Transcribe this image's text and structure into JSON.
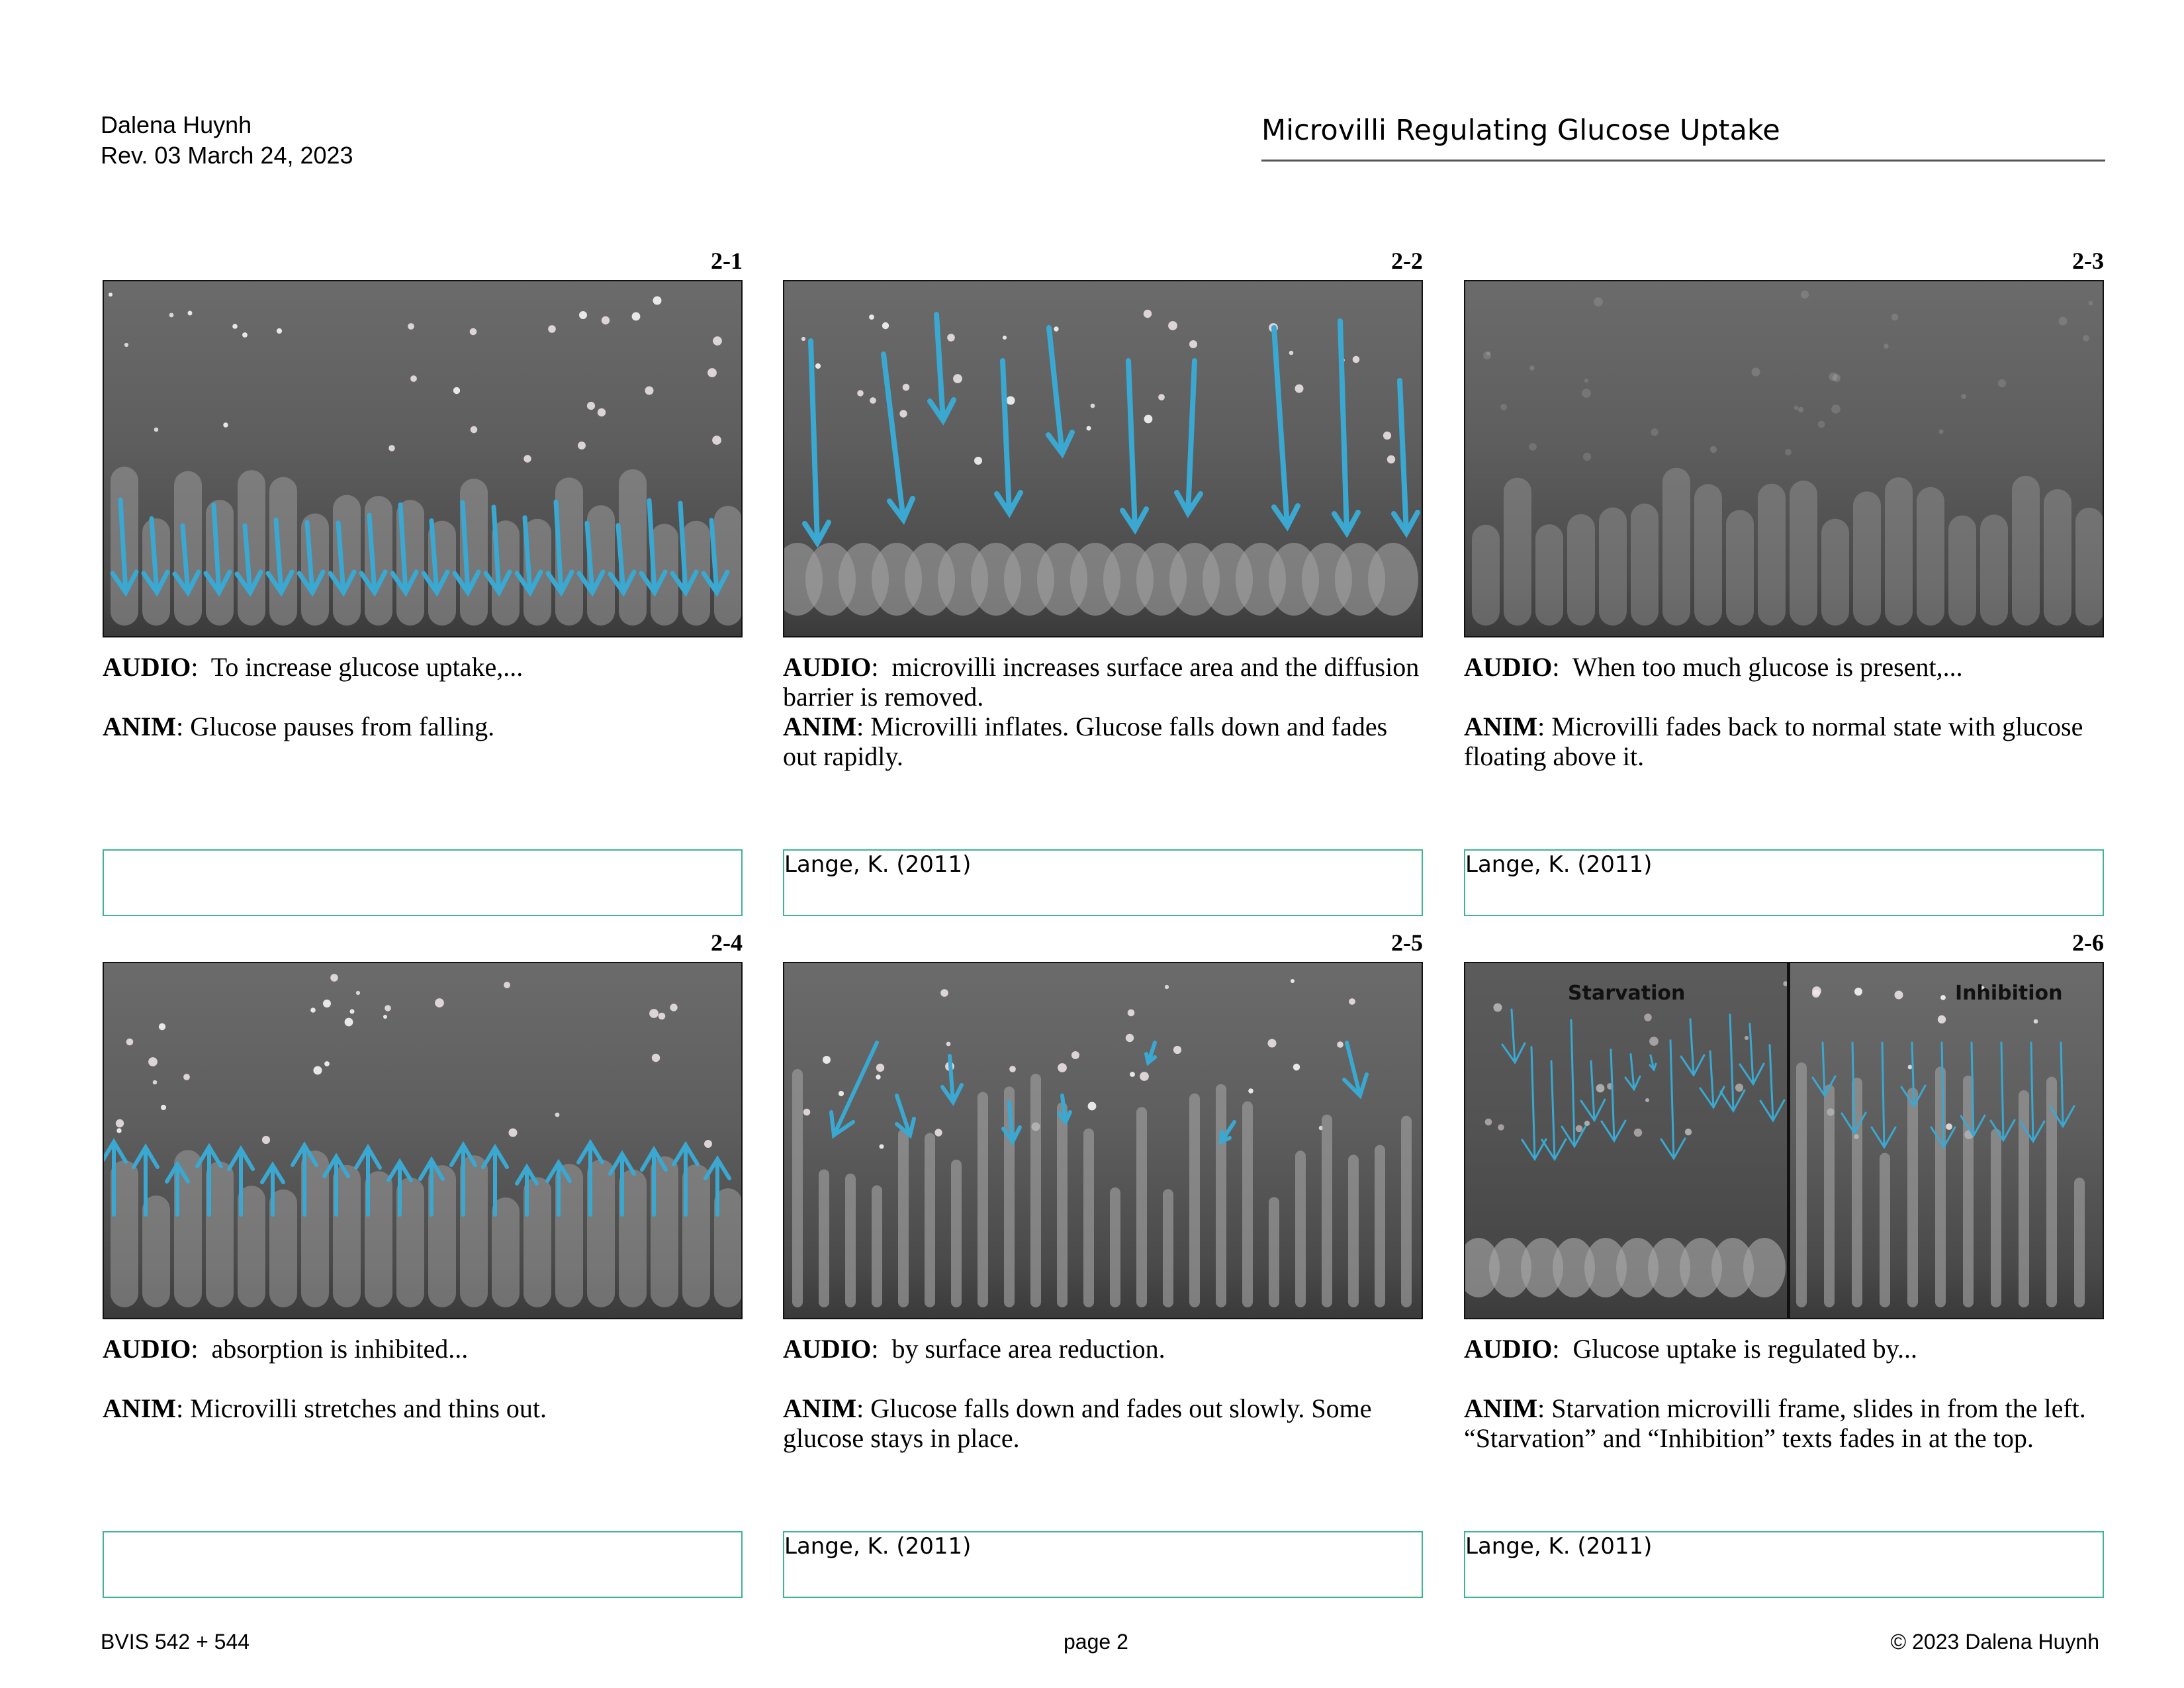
{
  "header": {
    "author": "Dalena Huynh",
    "revision": "Rev. 03 March 24, 2023",
    "title": "Microvilli Regulating Glucose Uptake"
  },
  "frames": [
    {
      "id": "2-1",
      "audio_label": "AUDIO",
      "audio": "To increase glucose uptake,...",
      "anim_label": "ANIM",
      "anim": "Glucose pauses from falling.",
      "reference": "",
      "style": "normal",
      "arrows": "down"
    },
    {
      "id": "2-2",
      "audio_label": "AUDIO",
      "audio": "microvilli increases surface area and the diffusion barrier is removed.",
      "anim_label": "ANIM",
      "anim": "Microvilli inflates. Glucose falls down and fades out rapidly.",
      "reference": "Lange, K. (2011)",
      "style": "inflated",
      "arrows": "down-long"
    },
    {
      "id": "2-3",
      "audio_label": "AUDIO",
      "audio": "When too much glucose is present,...",
      "anim_label": "ANIM",
      "anim": "Microvilli fades back to normal state with glucose floating above it.",
      "reference": "Lange, K. (2011)",
      "style": "normal-blur",
      "arrows": "none"
    },
    {
      "id": "2-4",
      "audio_label": "AUDIO",
      "audio": "absorption is inhibited...",
      "anim_label": "ANIM",
      "anim": "Microvilli stretches and thins out.",
      "reference": "",
      "style": "normal",
      "arrows": "up"
    },
    {
      "id": "2-5",
      "audio_label": "AUDIO",
      "audio": "by surface area reduction.",
      "anim_label": "ANIM",
      "anim": "Glucose falls down and fades out slowly. Some glucose stays in place.",
      "reference": "Lange, K. (2011)",
      "style": "thin",
      "arrows": "down-sparse"
    },
    {
      "id": "2-6",
      "audio_label": "AUDIO",
      "audio": "Glucose uptake is regulated by...",
      "anim_label": "ANIM",
      "anim": "Starvation microvilli frame, slides in from the left. “Starvation” and “Inhibition” texts fades in at the top.",
      "reference": "Lange, K. (2011)",
      "style": "split",
      "arrows": "split",
      "split_labels": [
        "Starvation",
        "Inhibition"
      ]
    }
  ],
  "colors": {
    "arrow": "#3aa8d0",
    "ref_border": "#3fb58a"
  },
  "footer": {
    "course": "BVIS 542 + 544",
    "page": "page 2",
    "copyright": "© 2023 Dalena Huynh"
  }
}
